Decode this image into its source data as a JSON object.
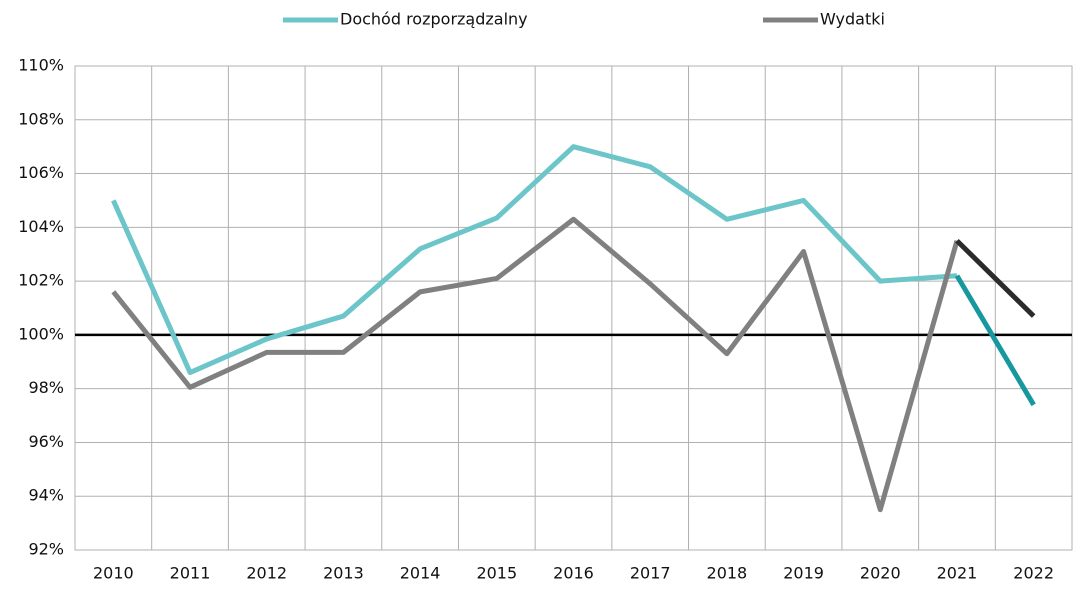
{
  "chart_data": {
    "type": "line",
    "categories": [
      "2010",
      "2011",
      "2012",
      "2013",
      "2014",
      "2015",
      "2016",
      "2017",
      "2018",
      "2019",
      "2020",
      "2021",
      "2022"
    ],
    "series": [
      {
        "name": "Dochód rozporządzalny",
        "color": "#6cc5c9",
        "last_segment_color": "#16989e",
        "values": [
          105.0,
          98.6,
          99.85,
          100.7,
          103.2,
          104.35,
          107.0,
          106.25,
          104.3,
          105.0,
          102.0,
          102.2,
          97.4
        ]
      },
      {
        "name": "Wydatki",
        "color": "#808080",
        "last_segment_color": "#2b2b2b",
        "values": [
          101.6,
          98.05,
          99.35,
          99.35,
          101.6,
          102.1,
          104.3,
          101.9,
          99.3,
          103.1,
          93.5,
          103.5,
          100.7
        ]
      }
    ],
    "ylim": [
      92,
      110
    ],
    "yticks": [
      {
        "value": 92,
        "label": "92%"
      },
      {
        "value": 94,
        "label": "94%"
      },
      {
        "value": 96,
        "label": "96%"
      },
      {
        "value": 98,
        "label": "98%"
      },
      {
        "value": 100,
        "label": "100%"
      },
      {
        "value": 102,
        "label": "102%"
      },
      {
        "value": 104,
        "label": "104%"
      },
      {
        "value": 106,
        "label": "106%"
      },
      {
        "value": 108,
        "label": "108%"
      },
      {
        "value": 110,
        "label": "110%"
      }
    ],
    "reference_line": 100,
    "grid": true,
    "legend": "top"
  }
}
